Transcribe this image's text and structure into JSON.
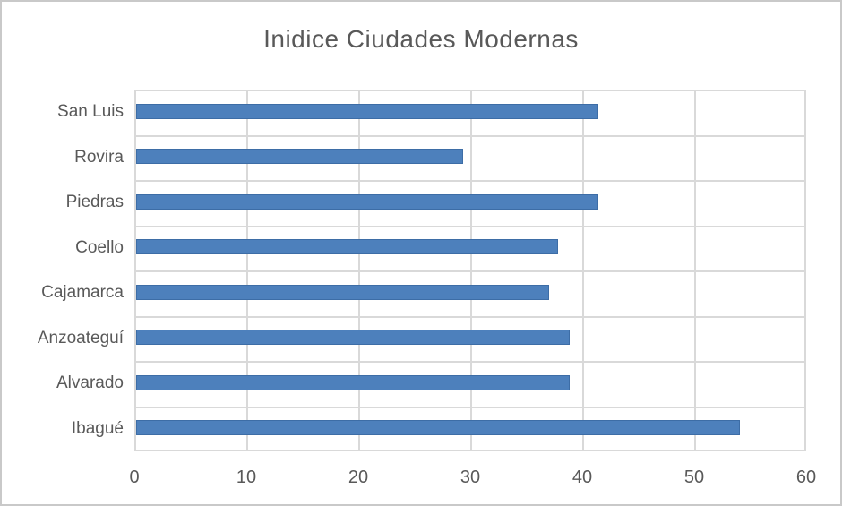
{
  "chart_data": {
    "type": "bar",
    "orientation": "horizontal",
    "title": "Inidice Ciudades Modernas",
    "categories": [
      "San Luis",
      "Rovira",
      "Piedras",
      "Coello",
      "Cajamarca",
      "Anzoateguí",
      "Alvarado",
      "Ibagué"
    ],
    "values": [
      41.3,
      29.2,
      41.3,
      37.7,
      36.9,
      38.7,
      38.7,
      53.9
    ],
    "xlabel": "",
    "ylabel": "",
    "xlim": [
      0,
      60
    ],
    "xticks": [
      0,
      10,
      20,
      30,
      40,
      50,
      60
    ],
    "grid": true,
    "legend": "none",
    "colors": {
      "bar_fill": "#4d80bc",
      "bar_border": "#3d6da6",
      "gridline": "#d9d9d9",
      "text": "#595959",
      "plot_background": "#ffffff",
      "frame_border": "#c9c9c9"
    }
  }
}
